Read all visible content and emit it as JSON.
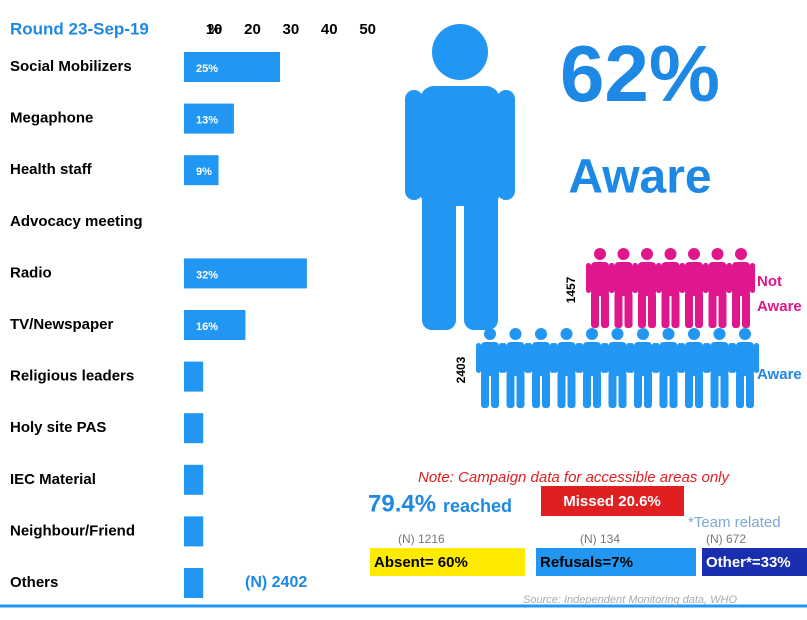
{
  "chart_data": {
    "type": "hbar",
    "title": "Round 23-Sep-19",
    "xlabel": "%",
    "categories": [
      "Social Mobilizers",
      "Megaphone",
      "Health  staff",
      "Advocacy meeting",
      "Radio",
      "TV/Newspaper",
      "Religious leaders",
      "Holy site PAS",
      "IEC Material",
      "Neighbour/Friend",
      "Others"
    ],
    "values": [
      25,
      13,
      9,
      0,
      32,
      16,
      5,
      5,
      5,
      5,
      5
    ],
    "value_labels": [
      "25%",
      "13%",
      "9%",
      null,
      "32%",
      "16%",
      null,
      null,
      null,
      null,
      null
    ],
    "color": "#2196f3",
    "xlim": [
      0,
      50
    ],
    "xticks": [
      10,
      20,
      30,
      40,
      50
    ],
    "sample_note": "(N) 2402"
  },
  "summary": {
    "aware_percent": "62%",
    "aware_label": "Aware",
    "not_aware_count": "1457",
    "not_aware_label": [
      "Not",
      "Aware"
    ],
    "aware_count": "2403",
    "aware_count_label": "Aware",
    "note": "Note: Campaign data for accessible areas only",
    "reached_value": "79.4%",
    "reached_label": "reached",
    "missed": "Missed  20.6%",
    "team_note": "*Team related",
    "reasons": [
      {
        "n": "(N)  1216",
        "label": "Absent=  60%"
      },
      {
        "n": "(N)  134",
        "label": "Refusals=7%"
      },
      {
        "n": "(N)  672",
        "label": "Other*=33%"
      }
    ],
    "source": "Source: Independent Monitoring data, WHO"
  }
}
